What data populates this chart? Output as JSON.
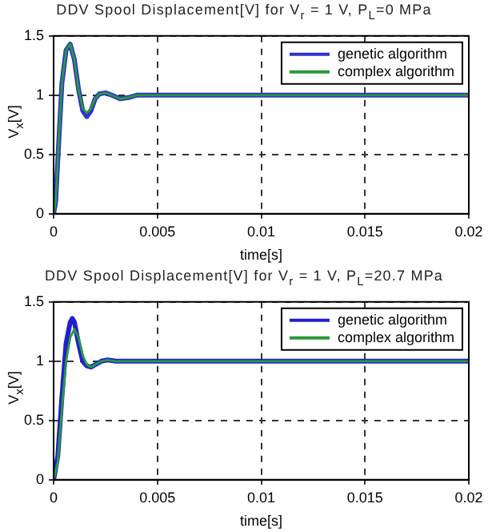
{
  "chart_data": [
    {
      "type": "line",
      "title": "DDV Spool Displacement[V] for V$_{r}$ = 1 V, P$_{L}$=0 MPa",
      "xlabel": "time[s]",
      "ylabel": "V$_{x}$[V]",
      "xlim": [
        0,
        0.02
      ],
      "xticks": [
        0,
        0.005,
        0.01,
        0.015,
        0.02
      ],
      "ylim": [
        0,
        1.5
      ],
      "yticks": [
        0,
        0.5,
        1,
        1.5
      ],
      "grid": true,
      "legend": "top right",
      "marker": "none",
      "line_style": "solid",
      "series": [
        {
          "name": "genetic algorithm",
          "color": "#3030d0",
          "x": [
            0,
            0.0001,
            0.0002,
            0.0004,
            0.0006,
            0.0008,
            0.001,
            0.0012,
            0.0014,
            0.0016,
            0.0018,
            0.002,
            0.0022,
            0.0025,
            0.0028,
            0.0032,
            0.0036,
            0.004,
            0.01,
            0.02
          ],
          "values": [
            0,
            0.1,
            0.45,
            1.1,
            1.38,
            1.43,
            1.3,
            1.05,
            0.87,
            0.82,
            0.87,
            0.97,
            1.01,
            1.02,
            1,
            0.97,
            0.98,
            1,
            1,
            1
          ]
        },
        {
          "name": "complex algorithm",
          "color": "#2a9a3a",
          "x": [
            0,
            0.0001,
            0.0002,
            0.0004,
            0.0006,
            0.0008,
            0.001,
            0.0012,
            0.0014,
            0.0016,
            0.0018,
            0.002,
            0.0022,
            0.0025,
            0.0028,
            0.0032,
            0.0036,
            0.004,
            0.01,
            0.02
          ],
          "values": [
            0,
            0.1,
            0.45,
            1.1,
            1.38,
            1.43,
            1.3,
            1.05,
            0.89,
            0.85,
            0.89,
            0.97,
            1.01,
            1.02,
            1,
            0.97,
            0.98,
            1,
            1,
            1
          ]
        }
      ]
    },
    {
      "type": "line",
      "title": "DDV Spool Displacement[V] for V$_{r}$ = 1 V, P$_{L}$=20.7 MPa",
      "xlabel": "time[s]",
      "ylabel": "V$_{x}$[V]",
      "xlim": [
        0,
        0.02
      ],
      "xticks": [
        0,
        0.005,
        0.01,
        0.015,
        0.02
      ],
      "ylim": [
        0,
        1.5
      ],
      "yticks": [
        0,
        0.5,
        1,
        1.5
      ],
      "grid": true,
      "legend": "top right",
      "marker": "none",
      "line_style": "solid",
      "series": [
        {
          "name": "genetic algorithm",
          "color": "#2020d0",
          "x": [
            0,
            0.0002,
            0.0004,
            0.0006,
            0.0008,
            0.0009,
            0.001,
            0.0012,
            0.0014,
            0.0016,
            0.0018,
            0.002,
            0.0023,
            0.0026,
            0.003,
            0.01,
            0.02
          ],
          "values": [
            0,
            0.2,
            0.7,
            1.15,
            1.33,
            1.36,
            1.33,
            1.15,
            1,
            0.96,
            0.95,
            0.97,
            1,
            1.01,
            1,
            1,
            1
          ]
        },
        {
          "name": "complex algorithm",
          "color": "#2a9a3a",
          "x": [
            0,
            0.0002,
            0.0004,
            0.0006,
            0.0008,
            0.001,
            0.0012,
            0.0014,
            0.0016,
            0.0018,
            0.002,
            0.0023,
            0.0026,
            0.003,
            0.01,
            0.02
          ],
          "values": [
            0,
            0.15,
            0.6,
            1,
            1.2,
            1.27,
            1.2,
            1.05,
            0.97,
            0.95,
            0.97,
            1,
            1.01,
            1,
            1,
            1
          ]
        }
      ]
    }
  ]
}
